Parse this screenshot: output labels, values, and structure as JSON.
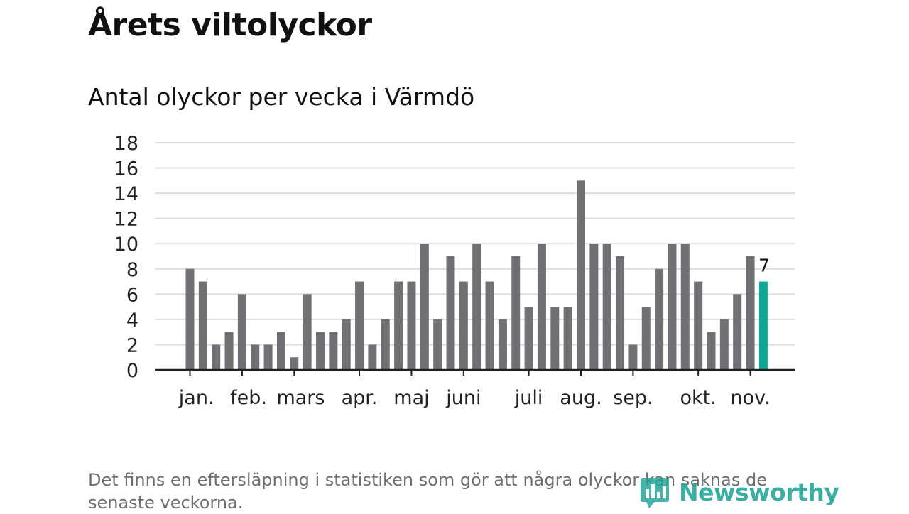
{
  "header": {
    "title": "Årets viltolyckor",
    "subtitle": "Antal olyckor per vecka i Värmdö"
  },
  "chart_data": {
    "type": "bar",
    "title": "Årets viltolyckor",
    "subtitle": "Antal olyckor per vecka i Värmdö",
    "xlabel": "",
    "ylabel": "",
    "ylim": [
      0,
      18
    ],
    "yticks": [
      0,
      2,
      4,
      6,
      8,
      10,
      12,
      14,
      16,
      18
    ],
    "grid": true,
    "values": [
      8,
      7,
      2,
      3,
      6,
      2,
      2,
      3,
      1,
      6,
      3,
      3,
      4,
      7,
      2,
      4,
      7,
      7,
      10,
      4,
      9,
      7,
      10,
      7,
      4,
      9,
      5,
      10,
      5,
      5,
      15,
      10,
      10,
      9,
      2,
      5,
      8,
      10,
      10,
      7,
      3,
      4,
      6,
      9,
      7
    ],
    "month_labels": [
      {
        "label": "jan.",
        "week_index": 0.5
      },
      {
        "label": "feb.",
        "week_index": 4.5
      },
      {
        "label": "mars",
        "week_index": 8.5
      },
      {
        "label": "apr.",
        "week_index": 13
      },
      {
        "label": "maj",
        "week_index": 17
      },
      {
        "label": "juni",
        "week_index": 21
      },
      {
        "label": "juli",
        "week_index": 26
      },
      {
        "label": "aug.",
        "week_index": 30
      },
      {
        "label": "sep.",
        "week_index": 34
      },
      {
        "label": "okt.",
        "week_index": 39
      },
      {
        "label": "nov.",
        "week_index": 43
      }
    ],
    "month_tick_weeks": [
      0,
      4,
      8,
      13,
      17,
      21,
      26,
      30,
      34,
      39,
      43
    ],
    "highlight": {
      "index": 44,
      "label": "7",
      "color": "#0fa898"
    },
    "bar_color": "#717075"
  },
  "footer": {
    "note": "Det finns en eftersläpning i statistiken som gör att några olyckor kan saknas de senaste veckorna.",
    "brand": "Newsworthy",
    "brand_color": "#26a79b",
    "brand_icon": "newsworthy-logo-icon"
  }
}
